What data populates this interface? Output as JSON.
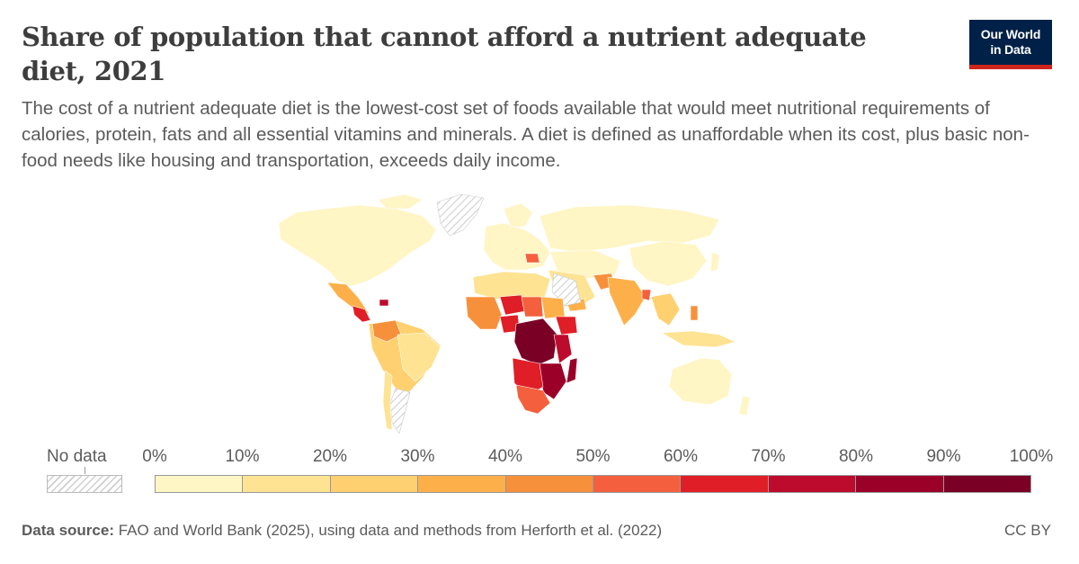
{
  "header": {
    "title": "Share of population that cannot afford a nutrient adequate diet, 2021",
    "subtitle": "The cost of a nutrient adequate diet is the lowest-cost set of foods available that would meet nutritional requirements of calories, protein, fats and all essential vitamins and minerals. A diet is defined as unaffordable when its cost, plus basic non-food needs like housing and transportation, exceeds daily income."
  },
  "logo": {
    "line1": "Our World",
    "line2": "in Data"
  },
  "legend": {
    "no_data_label": "No data",
    "ticks": [
      "0%",
      "10%",
      "20%",
      "30%",
      "40%",
      "50%",
      "60%",
      "70%",
      "80%",
      "90%",
      "100%"
    ],
    "colors": [
      "#fff5c5",
      "#fee393",
      "#fed06f",
      "#fdb04a",
      "#f7903b",
      "#f4603d",
      "#e01e27",
      "#bc0b2c",
      "#9b0028",
      "#7a0026"
    ]
  },
  "footer": {
    "source_label": "Data source:",
    "source_text": "FAO and World Bank (2025), using data and methods from Herforth et al. (2022)",
    "license": "CC BY"
  }
}
